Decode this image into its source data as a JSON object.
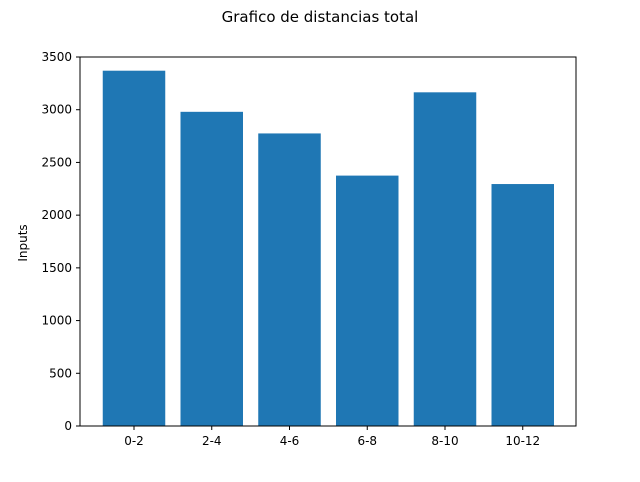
{
  "chart_data": {
    "type": "bar",
    "title": "Grafico de distancias total",
    "xlabel": "",
    "ylabel": "Inputs",
    "categories": [
      "0-2",
      "2-4",
      "4-6",
      "6-8",
      "8-10",
      "10-12"
    ],
    "values": [
      3370,
      2980,
      2775,
      2375,
      3165,
      2295
    ],
    "ylim": [
      0,
      3500
    ],
    "yticks": [
      0,
      500,
      1000,
      1500,
      2000,
      2500,
      3000,
      3500
    ],
    "bar_color": "#1f77b4",
    "grid": false,
    "legend": "none"
  }
}
